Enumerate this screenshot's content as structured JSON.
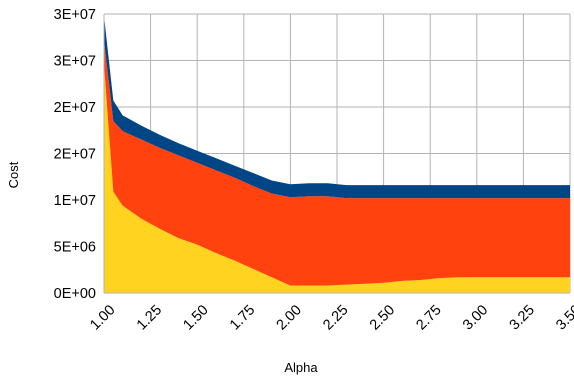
{
  "chart_data": {
    "type": "area",
    "stacked": true,
    "xlabel": "Alpha",
    "ylabel": "Cost",
    "xlim": [
      1.0,
      3.5
    ],
    "ylim": [
      0,
      30000000
    ],
    "grid": true,
    "x_ticks": [
      "1.00",
      "1.25",
      "1.50",
      "1.75",
      "2.00",
      "2.25",
      "2.50",
      "2.75",
      "3.00",
      "3.25",
      "3.50"
    ],
    "x_tick_values": [
      1.0,
      1.25,
      1.5,
      1.75,
      2.0,
      2.25,
      2.5,
      2.75,
      3.0,
      3.25,
      3.5
    ],
    "y_ticks": [
      "0E+00",
      "5E+06",
      "1E+07",
      "2E+07",
      "2E+07",
      "3E+07",
      "3E+07"
    ],
    "y_tick_values": [
      0,
      5000000,
      10000000,
      15000000,
      20000000,
      25000000,
      30000000
    ],
    "x": [
      1.0,
      1.05,
      1.1,
      1.2,
      1.3,
      1.4,
      1.5,
      1.6,
      1.7,
      1.8,
      1.9,
      2.0,
      2.1,
      2.2,
      2.3,
      2.4,
      2.5,
      2.6,
      2.7,
      2.8,
      2.9,
      3.0,
      3.1,
      3.2,
      3.3,
      3.4,
      3.5
    ],
    "series": [
      {
        "color": "#ffd320",
        "values": [
          24600000,
          10900000,
          9400000,
          8000000,
          6900000,
          5900000,
          5200000,
          4300000,
          3500000,
          2600000,
          1700000,
          800000,
          800000,
          800000,
          900000,
          1000000,
          1100000,
          1300000,
          1400000,
          1600000,
          1700000,
          1700000,
          1700000,
          1700000,
          1700000,
          1700000,
          1700000
        ]
      },
      {
        "color": "#ff420e",
        "values": [
          2600000,
          7600000,
          8000000,
          8500000,
          8700000,
          8900000,
          8800000,
          8900000,
          8900000,
          8900000,
          9000000,
          9500000,
          9600000,
          9600000,
          9300000,
          9200000,
          9100000,
          8900000,
          8800000,
          8600000,
          8500000,
          8500000,
          8500000,
          8500000,
          8500000,
          8500000,
          8500000
        ]
      },
      {
        "color": "#004586",
        "values": [
          2600000,
          2200000,
          1700000,
          1500000,
          1400000,
          1300000,
          1300000,
          1300000,
          1300000,
          1400000,
          1400000,
          1400000,
          1400000,
          1400000,
          1400000,
          1400000,
          1400000,
          1400000,
          1400000,
          1400000,
          1400000,
          1400000,
          1400000,
          1400000,
          1400000,
          1400000,
          1400000
        ]
      }
    ]
  }
}
